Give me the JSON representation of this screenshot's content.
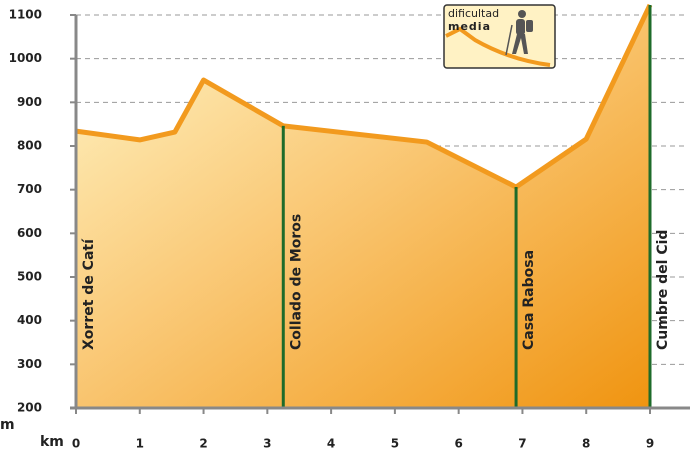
{
  "chart_data": {
    "type": "area",
    "x": [
      0,
      1,
      1.55,
      2,
      3.25,
      5.5,
      6.9,
      8,
      9
    ],
    "values": [
      834,
      814,
      832,
      951,
      846,
      809,
      706,
      816,
      1123
    ],
    "color": "#f29a1e",
    "xlim": [
      0,
      9
    ],
    "xticks": [
      0,
      1,
      2,
      3,
      4,
      5,
      6,
      7,
      8,
      9
    ],
    "ylim": [
      200,
      1100
    ],
    "yticks": [
      200,
      300,
      400,
      500,
      600,
      700,
      800,
      900,
      1000,
      1100
    ],
    "grid": true,
    "xlabel": "km",
    "ylabel": "m",
    "waypoints": [
      {
        "name": "Xorret de Catí",
        "x": 0
      },
      {
        "name": "Collado de Moros",
        "x": 3.25
      },
      {
        "name": "Casa Rabosa",
        "x": 6.9
      },
      {
        "name": "Cumbre del Cid",
        "x": 9
      }
    ],
    "difficulty": {
      "label": "dificultad",
      "level": "media"
    }
  }
}
